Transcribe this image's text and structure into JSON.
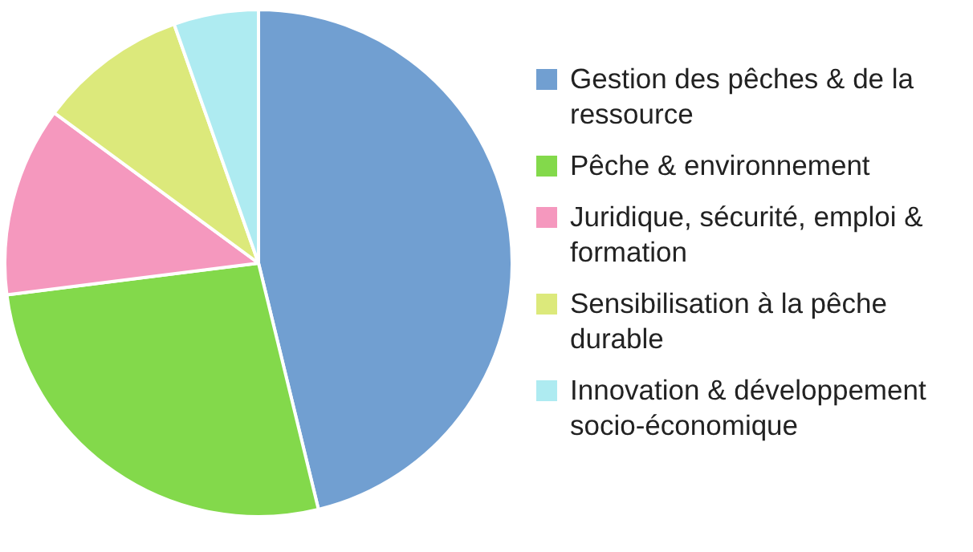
{
  "chart_data": {
    "type": "pie",
    "categories": [
      "Gestion des pêches & de la ressource",
      "Pêche & environnement",
      "Juridique, sécurité, emploi & formation",
      "Sensibilisation à la pêche durable",
      "Innovation & développement socio-économique"
    ],
    "values": [
      46.2,
      26.8,
      12.1,
      9.5,
      5.4
    ],
    "colors": [
      "#719fd1",
      "#83d94b",
      "#f598be",
      "#dce97b",
      "#aeebf1"
    ],
    "legend": "right"
  }
}
